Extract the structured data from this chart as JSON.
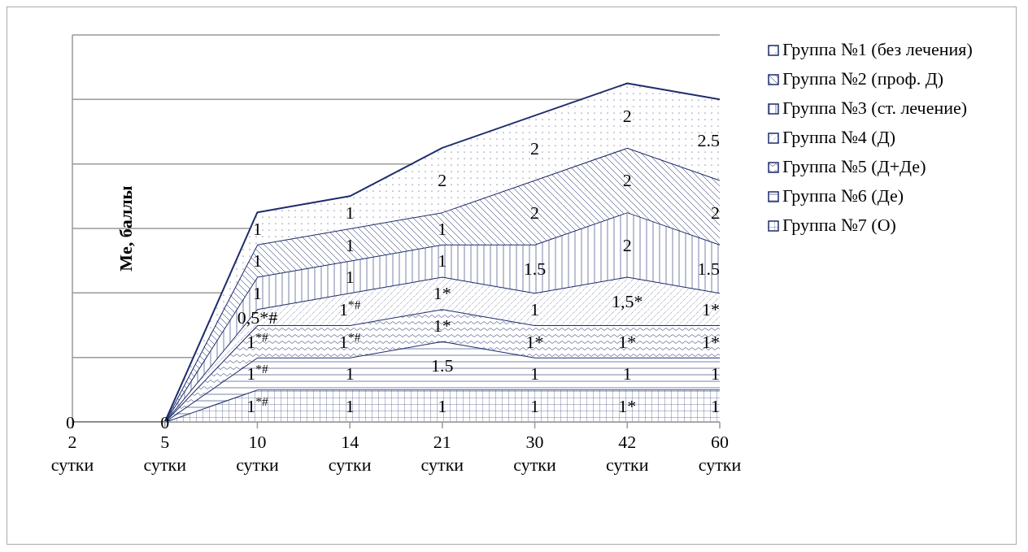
{
  "chart_data": {
    "type": "area",
    "stacked": true,
    "ylabel": "Me, баллы",
    "categories": [
      "2 сутки",
      "5 сутки",
      "10 сутки",
      "14 сутки",
      "21 сутки",
      "30 сутки",
      "42 сутки",
      "60 сутки"
    ],
    "ylim": [
      0,
      12
    ],
    "yticks": [
      {
        "value": 0,
        "label": null
      },
      {
        "value": 2,
        "label": null
      },
      {
        "value": 4,
        "label": null
      },
      {
        "value": 6,
        "label": null
      },
      {
        "value": 8,
        "label": null
      },
      {
        "value": 10,
        "label": null
      },
      {
        "value": 12,
        "label": null
      }
    ],
    "tick_labels": "x",
    "grid": "y",
    "legend": "right",
    "series": [
      {
        "name": "Группа №7 (О)",
        "color": "#1f2d6b",
        "values": [
          0,
          0,
          1,
          1,
          1,
          1,
          1,
          1
        ],
        "value_labels": [
          "0",
          "0",
          "1$^{*#}$",
          "1",
          "1",
          "1",
          "1*",
          "1"
        ]
      },
      {
        "name": "Группа №6 (Де)",
        "color": "#1f2d6b",
        "values": [
          0,
          0,
          1,
          1,
          1.5,
          1,
          1,
          1
        ],
        "value_labels": [
          null,
          null,
          "1$^{*#}$",
          "1",
          "1.5",
          "1",
          "1",
          "1"
        ]
      },
      {
        "name": "Группа №5 (Д+Де)",
        "color": "#1f2d6b",
        "values": [
          0,
          0,
          1,
          1,
          1,
          1,
          1,
          1
        ],
        "value_labels": [
          null,
          null,
          "1$^{*#}$",
          "1$^{*#}$",
          "1*",
          "1*",
          "1*",
          "1*"
        ]
      },
      {
        "name": "Группа №4 (Д)",
        "color": "#1f2d6b",
        "values": [
          0,
          0,
          0.5,
          1,
          1,
          1,
          1.5,
          1
        ],
        "value_labels": [
          null,
          null,
          "0,5*#",
          "1$^{*#}$",
          "1*",
          "1",
          "1,5*",
          "1*"
        ]
      },
      {
        "name": "Группа №3 (ст. лечение)",
        "color": "#1f2d6b",
        "values": [
          0,
          0,
          1,
          1,
          1,
          1.5,
          2,
          1.5
        ],
        "value_labels": [
          null,
          null,
          "1",
          "1",
          "1",
          "1.5",
          "2",
          "1.5"
        ]
      },
      {
        "name": "Группа №2 (проф. Д)",
        "color": "#1f2d6b",
        "values": [
          0,
          0,
          1,
          1,
          1,
          2,
          2,
          2
        ],
        "value_labels": [
          null,
          null,
          "1",
          "1",
          "1",
          "2",
          "2",
          "2"
        ]
      },
      {
        "name": "Группа №1 (без лечения)",
        "color": "#1f2d6b",
        "values": [
          0,
          0,
          1,
          1,
          2,
          2,
          2,
          2.5
        ],
        "value_labels": [
          null,
          null,
          "1",
          "1",
          "2",
          "2",
          "2",
          "2.5"
        ]
      }
    ]
  }
}
